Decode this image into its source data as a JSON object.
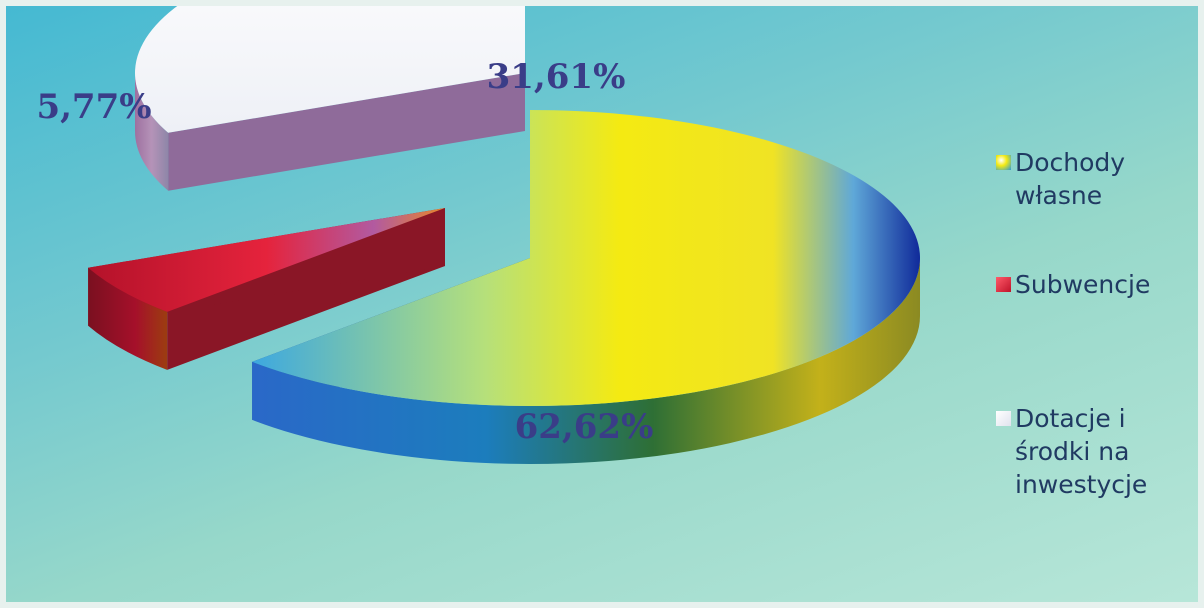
{
  "chart_data": {
    "type": "pie",
    "slices": [
      {
        "label": "Dochody własne",
        "value": 62.62,
        "value_label": "62,62%",
        "color": "#f2e617"
      },
      {
        "label": "Subwencje",
        "value": 5.77,
        "value_label": "5,77%",
        "color": "#d42a2a"
      },
      {
        "label": "Dotacje i środki na inwestycje",
        "value": 31.61,
        "value_label": "31,61%",
        "color": "#ffffff"
      }
    ],
    "legend_position": "right",
    "exploded": true,
    "three_d": true
  }
}
